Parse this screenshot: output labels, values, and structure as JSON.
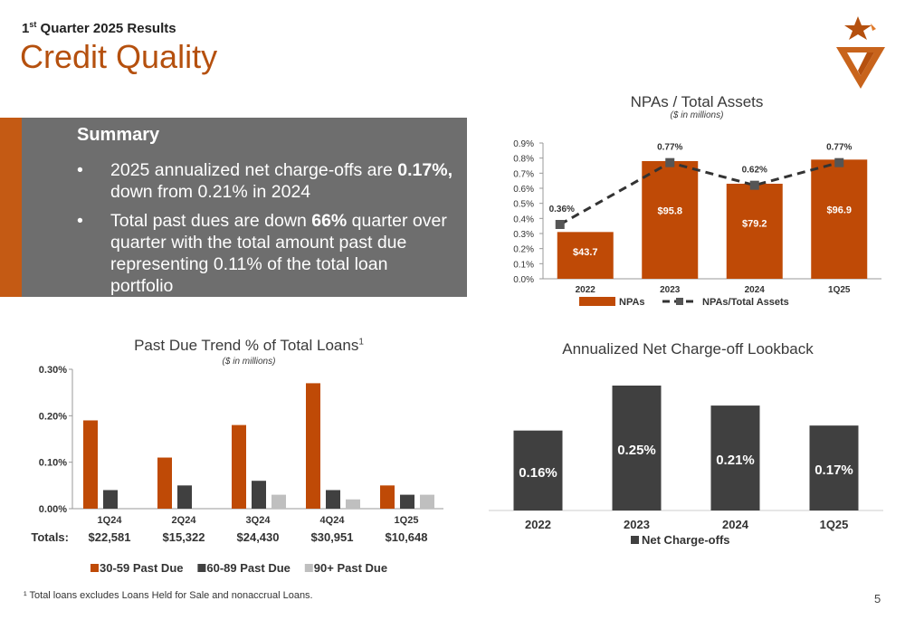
{
  "header": {
    "subtitle_pre": "1",
    "subtitle_sup": "st",
    "subtitle_post": " Quarter 2025 Results",
    "title": "Credit Quality"
  },
  "summary": {
    "heading": "Summary",
    "bullet_symbol": "•",
    "bullets": [
      {
        "pre": "2025 annualized net charge-offs are ",
        "bold": "0.17%,",
        "post": " down from 0.21% in 2024"
      },
      {
        "pre": "Total past dues are down ",
        "bold": "66%",
        "post": " quarter over quarter with the total amount past due representing 0.11% of the total loan portfolio"
      }
    ]
  },
  "npa": {
    "title": "NPAs / Total Assets",
    "subtitle": "($ in millions)"
  },
  "pastdue": {
    "title": "Past Due Trend % of Total Loans",
    "title_sup": "1",
    "subtitle": "($ in millions)",
    "totals_label": "Totals:",
    "totals": [
      "$22,581",
      "$15,322",
      "$24,430",
      "$30,951",
      "$10,648"
    ]
  },
  "nco": {
    "title": "Annualized Net Charge-off Lookback"
  },
  "footnote": "¹ Total loans excludes Loans Held for Sale and nonaccrual Loans.",
  "page_number": "5",
  "colors": {
    "brand_orange": "#b5500e",
    "bar_orange": "#bf4a06",
    "dark_gray": "#404040",
    "mid_gray": "#6e6e6e",
    "light_gray": "#bfbfbf"
  },
  "chart_data": [
    {
      "type": "bar",
      "id": "npa",
      "categories": [
        "2022",
        "2023",
        "2024",
        "1Q25"
      ],
      "series": [
        {
          "name": "NPAs",
          "type": "bar",
          "values": [
            0.31,
            0.78,
            0.63,
            0.79
          ],
          "labels": [
            "$43.7",
            "$95.8",
            "$79.2",
            "$96.9"
          ]
        },
        {
          "name": "NPAs/Total Assets",
          "type": "line",
          "values": [
            0.36,
            0.77,
            0.62,
            0.77
          ],
          "labels": [
            "0.36%",
            "0.77%",
            "0.62%",
            "0.77%"
          ]
        }
      ],
      "yticks": [
        "0.0%",
        "0.1%",
        "0.2%",
        "0.3%",
        "0.4%",
        "0.5%",
        "0.6%",
        "0.7%",
        "0.8%",
        "0.9%"
      ],
      "ylim": [
        0,
        0.9
      ],
      "legend": "bottom"
    },
    {
      "type": "bar",
      "id": "pastdue",
      "categories": [
        "1Q24",
        "2Q24",
        "3Q24",
        "4Q24",
        "1Q25"
      ],
      "series": [
        {
          "name": "30-59 Past Due",
          "values": [
            0.19,
            0.11,
            0.18,
            0.27,
            0.05
          ]
        },
        {
          "name": "60-89 Past Due",
          "values": [
            0.04,
            0.05,
            0.06,
            0.04,
            0.03
          ]
        },
        {
          "name": "90+ Past Due",
          "values": [
            0.0,
            0.0,
            0.03,
            0.02,
            0.03
          ]
        }
      ],
      "yticks": [
        "0.00%",
        "0.10%",
        "0.20%",
        "0.30%"
      ],
      "ylim": [
        0,
        0.3
      ],
      "legend": "bottom"
    },
    {
      "type": "bar",
      "id": "nco",
      "categories": [
        "2022",
        "2023",
        "2024",
        "1Q25"
      ],
      "series": [
        {
          "name": "Net Charge-offs",
          "values": [
            0.16,
            0.25,
            0.21,
            0.17
          ],
          "labels": [
            "0.16%",
            "0.25%",
            "0.21%",
            "0.17%"
          ]
        }
      ],
      "legend": "bottom"
    }
  ]
}
